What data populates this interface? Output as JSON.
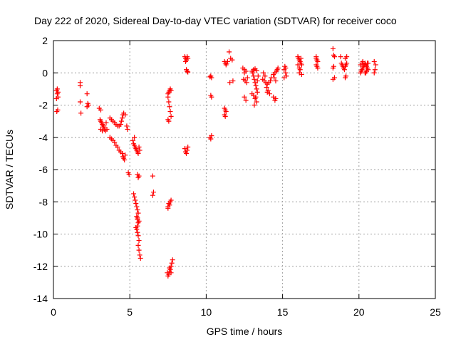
{
  "chart_data": {
    "type": "scatter",
    "title": "Day 222 of 2020, Sidereal Day-to-day VTEC variation (SDTVAR) for receiver coco",
    "xlabel": "GPS time / hours",
    "ylabel": "SDTVAR / TECUs",
    "xlim": [
      0,
      25
    ],
    "ylim": [
      -14,
      2
    ],
    "xticks": [
      0,
      5,
      10,
      15,
      20,
      25
    ],
    "yticks": [
      -14,
      -12,
      -10,
      -8,
      -6,
      -4,
      -2,
      0,
      2
    ],
    "grid": true,
    "marker": "plus",
    "color": "#ff0000",
    "series": [
      {
        "name": "SDTVAR",
        "points": [
          [
            0.2,
            -1.1
          ],
          [
            0.25,
            -1.3
          ],
          [
            0.3,
            -1.5
          ],
          [
            0.2,
            -1.6
          ],
          [
            0.25,
            -1.0
          ],
          [
            0.3,
            -1.2
          ],
          [
            0.22,
            -2.4
          ],
          [
            0.28,
            -2.3
          ],
          [
            1.75,
            -0.6
          ],
          [
            1.75,
            -0.8
          ],
          [
            1.75,
            -1.8
          ],
          [
            1.8,
            -2.5
          ],
          [
            2.2,
            -1.3
          ],
          [
            2.25,
            -1.9
          ],
          [
            2.3,
            -2.0
          ],
          [
            2.2,
            -2.1
          ],
          [
            3.0,
            -2.2
          ],
          [
            3.1,
            -2.3
          ],
          [
            3.05,
            -2.9
          ],
          [
            3.1,
            -3.0
          ],
          [
            3.15,
            -3.1
          ],
          [
            3.2,
            -3.2
          ],
          [
            3.25,
            -3.3
          ],
          [
            3.3,
            -3.4
          ],
          [
            3.35,
            -3.5
          ],
          [
            3.4,
            -3.6
          ],
          [
            3.1,
            -3.5
          ],
          [
            3.2,
            -3.6
          ],
          [
            3.3,
            -3.3
          ],
          [
            3.45,
            -3.1
          ],
          [
            3.5,
            -3.5
          ],
          [
            3.7,
            -2.8
          ],
          [
            3.8,
            -2.9
          ],
          [
            3.9,
            -3.0
          ],
          [
            4.0,
            -3.1
          ],
          [
            4.1,
            -3.2
          ],
          [
            4.2,
            -3.3
          ],
          [
            4.3,
            -3.3
          ],
          [
            4.4,
            -3.2
          ],
          [
            4.45,
            -3.0
          ],
          [
            4.5,
            -2.8
          ],
          [
            4.55,
            -2.6
          ],
          [
            4.6,
            -2.5
          ],
          [
            4.7,
            -2.6
          ],
          [
            3.7,
            -4.0
          ],
          [
            3.8,
            -4.1
          ],
          [
            3.9,
            -4.2
          ],
          [
            4.0,
            -4.3
          ],
          [
            4.1,
            -4.5
          ],
          [
            4.2,
            -4.6
          ],
          [
            4.3,
            -4.8
          ],
          [
            4.4,
            -4.9
          ],
          [
            4.5,
            -5.0
          ],
          [
            4.55,
            -5.2
          ],
          [
            4.6,
            -5.3
          ],
          [
            4.65,
            -5.4
          ],
          [
            4.7,
            -5.1
          ],
          [
            4.8,
            -3.3
          ],
          [
            4.85,
            -3.5
          ],
          [
            4.9,
            -6.2
          ],
          [
            4.95,
            -6.3
          ],
          [
            5.2,
            -4.2
          ],
          [
            5.25,
            -4.4
          ],
          [
            5.3,
            -4.5
          ],
          [
            5.35,
            -4.6
          ],
          [
            5.4,
            -4.7
          ],
          [
            5.45,
            -4.8
          ],
          [
            5.5,
            -4.9
          ],
          [
            5.55,
            -5.0
          ],
          [
            5.6,
            -4.6
          ],
          [
            5.65,
            -4.8
          ],
          [
            5.3,
            -4.0
          ],
          [
            5.5,
            -6.3
          ],
          [
            5.55,
            -6.5
          ],
          [
            5.6,
            -6.4
          ],
          [
            5.25,
            -7.5
          ],
          [
            5.3,
            -7.7
          ],
          [
            5.35,
            -7.9
          ],
          [
            5.4,
            -8.1
          ],
          [
            5.45,
            -8.3
          ],
          [
            5.5,
            -8.5
          ],
          [
            5.55,
            -8.7
          ],
          [
            5.45,
            -8.9
          ],
          [
            5.5,
            -9.1
          ],
          [
            5.55,
            -9.3
          ],
          [
            5.5,
            -9.5
          ],
          [
            5.45,
            -9.7
          ],
          [
            5.5,
            -9.9
          ],
          [
            5.55,
            -10.1
          ],
          [
            5.6,
            -10.4
          ],
          [
            5.55,
            -10.7
          ],
          [
            5.6,
            -11.0
          ],
          [
            5.65,
            -11.3
          ],
          [
            5.7,
            -11.5
          ],
          [
            5.5,
            -9.0
          ],
          [
            5.6,
            -9.2
          ],
          [
            5.4,
            -9.6
          ],
          [
            6.5,
            -6.4
          ],
          [
            6.55,
            -7.4
          ],
          [
            6.5,
            -7.6
          ],
          [
            7.5,
            -1.3
          ],
          [
            7.55,
            -1.2
          ],
          [
            7.6,
            -1.1
          ],
          [
            7.65,
            -1.0
          ],
          [
            7.7,
            -1.1
          ],
          [
            7.5,
            -1.5
          ],
          [
            7.55,
            -1.8
          ],
          [
            7.6,
            -2.1
          ],
          [
            7.65,
            -2.4
          ],
          [
            7.7,
            -2.7
          ],
          [
            7.5,
            -2.9
          ],
          [
            7.55,
            -3.0
          ],
          [
            7.5,
            -8.3
          ],
          [
            7.55,
            -8.1
          ],
          [
            7.6,
            -8.2
          ],
          [
            7.65,
            -8.0
          ],
          [
            7.7,
            -7.9
          ],
          [
            7.5,
            -8.4
          ],
          [
            7.45,
            -12.4
          ],
          [
            7.5,
            -12.6
          ],
          [
            7.55,
            -12.5
          ],
          [
            7.6,
            -12.3
          ],
          [
            7.65,
            -12.2
          ],
          [
            7.7,
            -12.0
          ],
          [
            7.75,
            -11.8
          ],
          [
            7.8,
            -11.6
          ],
          [
            7.6,
            -12.1
          ],
          [
            7.7,
            -12.4
          ],
          [
            8.6,
            -4.7
          ],
          [
            8.65,
            -4.9
          ],
          [
            8.7,
            -5.0
          ],
          [
            8.75,
            -4.8
          ],
          [
            8.8,
            -4.6
          ],
          [
            8.6,
            1.0
          ],
          [
            8.65,
            0.9
          ],
          [
            8.7,
            0.8
          ],
          [
            8.75,
            1.0
          ],
          [
            8.8,
            0.9
          ],
          [
            8.65,
            0.7
          ],
          [
            8.7,
            0.2
          ],
          [
            8.75,
            0.1
          ],
          [
            8.8,
            0.05
          ],
          [
            10.25,
            -0.25
          ],
          [
            10.3,
            -0.2
          ],
          [
            10.35,
            -0.3
          ],
          [
            10.3,
            -1.4
          ],
          [
            10.35,
            -1.5
          ],
          [
            10.25,
            -4.0
          ],
          [
            10.3,
            -4.1
          ],
          [
            10.35,
            -3.9
          ],
          [
            11.2,
            0.7
          ],
          [
            11.25,
            0.6
          ],
          [
            11.3,
            0.5
          ],
          [
            11.35,
            0.6
          ],
          [
            11.4,
            0.7
          ],
          [
            11.2,
            -2.2
          ],
          [
            11.25,
            -2.3
          ],
          [
            11.3,
            -2.4
          ],
          [
            11.2,
            -2.6
          ],
          [
            11.25,
            -2.7
          ],
          [
            11.5,
            1.3
          ],
          [
            11.6,
            0.9
          ],
          [
            11.7,
            0.8
          ],
          [
            11.55,
            -0.6
          ],
          [
            11.75,
            -0.5
          ],
          [
            12.4,
            0.3
          ],
          [
            12.5,
            0.2
          ],
          [
            12.6,
            0.1
          ],
          [
            12.45,
            -0.4
          ],
          [
            12.55,
            -0.5
          ],
          [
            12.65,
            -0.6
          ],
          [
            12.7,
            -0.3
          ],
          [
            12.5,
            -1.5
          ],
          [
            12.6,
            -1.7
          ],
          [
            12.5,
            0.0
          ],
          [
            13.0,
            0.1
          ],
          [
            13.05,
            0.0
          ],
          [
            13.1,
            -0.2
          ],
          [
            13.15,
            -0.4
          ],
          [
            13.2,
            -0.6
          ],
          [
            13.25,
            -0.8
          ],
          [
            13.3,
            -1.0
          ],
          [
            13.35,
            -1.2
          ],
          [
            13.1,
            -1.4
          ],
          [
            13.2,
            -1.6
          ],
          [
            13.3,
            -1.8
          ],
          [
            13.15,
            -2.0
          ],
          [
            13.0,
            -1.3
          ],
          [
            13.25,
            -1.5
          ],
          [
            13.35,
            -0.5
          ],
          [
            13.4,
            -0.2
          ],
          [
            13.1,
            0.2
          ],
          [
            13.2,
            0.25
          ],
          [
            13.3,
            0.15
          ],
          [
            13.7,
            -0.4
          ],
          [
            13.8,
            -0.5
          ],
          [
            13.9,
            -0.6
          ],
          [
            14.0,
            -0.7
          ],
          [
            14.1,
            -0.6
          ],
          [
            14.2,
            -0.5
          ],
          [
            13.75,
            0.0
          ],
          [
            13.85,
            -0.2
          ],
          [
            13.95,
            -0.9
          ],
          [
            14.05,
            -1.1
          ],
          [
            14.15,
            -1.3
          ],
          [
            14.0,
            -1.2
          ],
          [
            14.25,
            -0.3
          ],
          [
            14.4,
            -0.1
          ],
          [
            14.5,
            0.0
          ],
          [
            14.6,
            0.1
          ],
          [
            14.65,
            0.2
          ],
          [
            14.7,
            0.3
          ],
          [
            14.45,
            -0.3
          ],
          [
            14.55,
            -0.5
          ],
          [
            14.4,
            -1.5
          ],
          [
            14.5,
            -1.7
          ],
          [
            14.55,
            -1.6
          ],
          [
            15.1,
            0.2
          ],
          [
            15.15,
            0.4
          ],
          [
            15.2,
            0.3
          ],
          [
            15.25,
            -0.2
          ],
          [
            15.1,
            -0.3
          ],
          [
            15.2,
            0.0
          ],
          [
            16.0,
            1.0
          ],
          [
            16.05,
            0.9
          ],
          [
            16.1,
            0.8
          ],
          [
            16.15,
            0.7
          ],
          [
            16.2,
            0.6
          ],
          [
            16.25,
            0.5
          ],
          [
            16.1,
            0.3
          ],
          [
            16.0,
            0.5
          ],
          [
            16.2,
            0.9
          ],
          [
            16.15,
            0.2
          ],
          [
            16.1,
            0.0
          ],
          [
            16.25,
            -0.1
          ],
          [
            17.2,
            0.9
          ],
          [
            17.25,
            0.8
          ],
          [
            17.3,
            0.7
          ],
          [
            17.2,
            0.5
          ],
          [
            17.25,
            0.4
          ],
          [
            17.3,
            0.3
          ],
          [
            17.2,
            1.0
          ],
          [
            18.3,
            1.5
          ],
          [
            18.35,
            1.1
          ],
          [
            18.4,
            1.0
          ],
          [
            18.3,
            0.3
          ],
          [
            18.35,
            0.4
          ],
          [
            18.3,
            -0.4
          ],
          [
            18.4,
            -0.3
          ],
          [
            18.8,
            1.0
          ],
          [
            18.85,
            0.6
          ],
          [
            18.9,
            0.5
          ],
          [
            18.95,
            0.4
          ],
          [
            19.0,
            0.3
          ],
          [
            19.05,
            0.2
          ],
          [
            19.1,
            0.4
          ],
          [
            19.15,
            0.5
          ],
          [
            19.2,
            0.6
          ],
          [
            19.1,
            0.9
          ],
          [
            19.2,
            1.0
          ],
          [
            19.1,
            -0.3
          ],
          [
            19.15,
            -0.2
          ],
          [
            20.1,
            0.0
          ],
          [
            20.15,
            0.1
          ],
          [
            20.2,
            0.2
          ],
          [
            20.25,
            0.3
          ],
          [
            20.3,
            0.4
          ],
          [
            20.35,
            0.5
          ],
          [
            20.4,
            0.6
          ],
          [
            20.45,
            0.5
          ],
          [
            20.5,
            0.4
          ],
          [
            20.55,
            0.3
          ],
          [
            20.6,
            0.2
          ],
          [
            20.2,
            0.6
          ],
          [
            20.3,
            0.5
          ],
          [
            20.4,
            0.0
          ],
          [
            20.5,
            0.1
          ],
          [
            20.6,
            0.6
          ],
          [
            20.1,
            0.5
          ],
          [
            20.25,
            0.7
          ],
          [
            20.45,
            0.0
          ],
          [
            20.55,
            0.6
          ],
          [
            21.0,
            0.0
          ],
          [
            21.05,
            0.2
          ],
          [
            21.1,
            0.5
          ],
          [
            21.0,
            0.7
          ]
        ]
      }
    ]
  }
}
